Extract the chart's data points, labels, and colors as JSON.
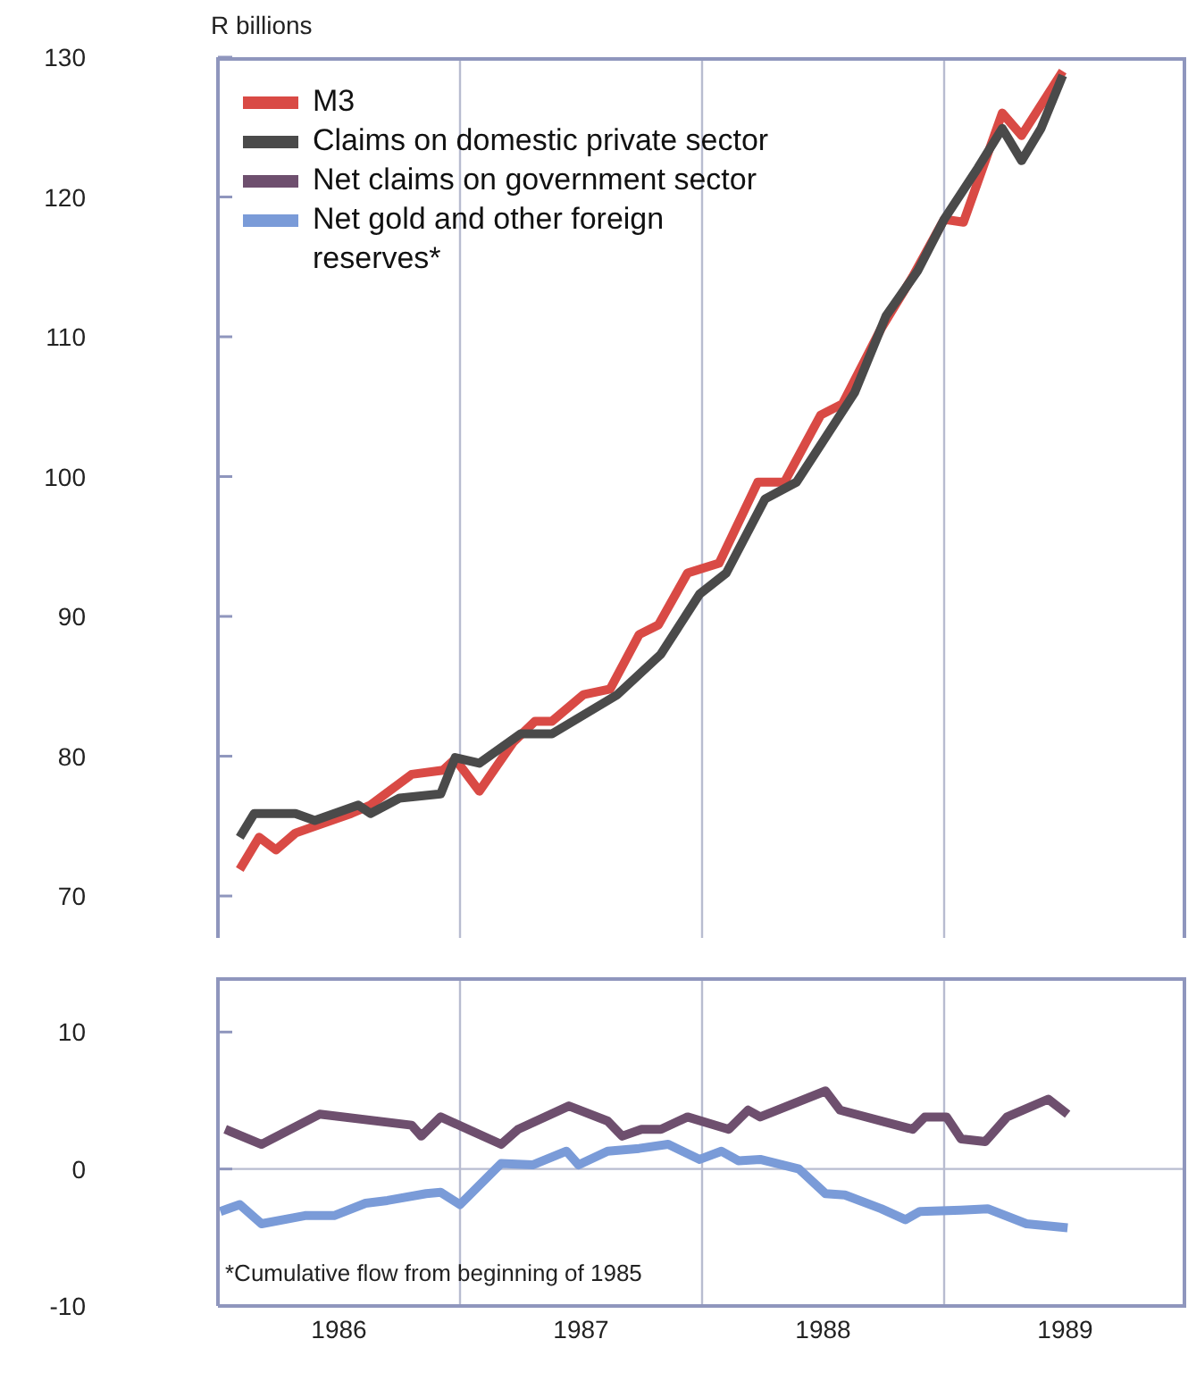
{
  "chart_data": [
    {
      "type": "line",
      "ylabel": "R billions",
      "xlim": [
        1986,
        1990
      ],
      "ylim": [
        67,
        130
      ],
      "yticks": [
        70,
        80,
        90,
        100,
        110,
        120,
        130
      ],
      "tick_labels": "y",
      "grid": false,
      "legend": "top left",
      "marker": "none",
      "line_style": "solid",
      "ref_lines": [
        {
          "axis": "x",
          "value": 1987,
          "color": "#b8bcd0"
        },
        {
          "axis": "x",
          "value": 1988,
          "color": "#b8bcd0"
        },
        {
          "axis": "x",
          "value": 1989,
          "color": "#b8bcd0"
        }
      ],
      "series": [
        {
          "name": "M3",
          "color": "#d94a45",
          "x": [
            1986.09,
            1986.17,
            1986.24,
            1986.32,
            1986.55,
            1986.63,
            1986.8,
            1986.93,
            1986.98,
            1987.08,
            1987.14,
            1987.22,
            1987.31,
            1987.38,
            1987.51,
            1987.62,
            1987.74,
            1987.82,
            1987.94,
            1988.07,
            1988.23,
            1988.34,
            1988.49,
            1988.58,
            1988.74,
            1988.87,
            1989.0,
            1989.08,
            1989.24,
            1989.32,
            1989.49
          ],
          "values": [
            71.9,
            74.2,
            73.3,
            74.5,
            75.9,
            76.5,
            78.7,
            79.0,
            79.8,
            77.5,
            79.0,
            81.0,
            82.5,
            82.5,
            84.4,
            84.8,
            88.7,
            89.4,
            93.1,
            93.8,
            99.6,
            99.6,
            104.4,
            105.2,
            110.6,
            114.3,
            118.4,
            118.2,
            126.0,
            124.4,
            129.0
          ]
        },
        {
          "name": "Claims on domestic private sector",
          "color": "#4a4a4a",
          "x": [
            1986.09,
            1986.15,
            1986.32,
            1986.4,
            1986.58,
            1986.63,
            1986.75,
            1986.92,
            1986.98,
            1987.08,
            1987.25,
            1987.38,
            1987.65,
            1987.83,
            1987.99,
            1988.1,
            1988.26,
            1988.39,
            1988.63,
            1988.76,
            1988.89,
            1989.0,
            1989.14,
            1989.24,
            1989.32,
            1989.4,
            1989.49
          ],
          "values": [
            74.2,
            75.9,
            75.9,
            75.4,
            76.5,
            75.9,
            77.0,
            77.3,
            79.9,
            79.5,
            81.6,
            81.6,
            84.4,
            87.3,
            91.6,
            93.1,
            98.4,
            99.6,
            106.0,
            111.5,
            114.7,
            118.4,
            122.1,
            124.9,
            122.6,
            124.9,
            128.7
          ]
        }
      ]
    },
    {
      "type": "line",
      "xlim": [
        1986,
        1990
      ],
      "xticks": [
        {
          "value": 1986.5,
          "label": "1986"
        },
        {
          "value": 1987.5,
          "label": "1987"
        },
        {
          "value": 1988.5,
          "label": "1988"
        },
        {
          "value": 1989.5,
          "label": "1989"
        }
      ],
      "ylim": [
        -10,
        14
      ],
      "yticks": [
        -10,
        0,
        10
      ],
      "grid": false,
      "legend": "top",
      "marker": "none",
      "line_style": "solid",
      "annotations": [
        "*Cumulative flow from beginning of 1985"
      ],
      "ref_lines": [
        {
          "axis": "x",
          "value": 1987,
          "color": "#b8bcd0"
        },
        {
          "axis": "x",
          "value": 1988,
          "color": "#b8bcd0"
        },
        {
          "axis": "x",
          "value": 1989,
          "color": "#b8bcd0"
        },
        {
          "axis": "y",
          "value": 0,
          "color": "#b8bcd0"
        }
      ],
      "series": [
        {
          "name": "Net claims on government sector",
          "color": "#6e4f6e",
          "x": [
            1986.03,
            1986.18,
            1986.42,
            1986.8,
            1986.84,
            1986.92,
            1987.17,
            1987.24,
            1987.45,
            1987.61,
            1987.67,
            1987.75,
            1987.83,
            1987.94,
            1988.11,
            1988.19,
            1988.24,
            1988.51,
            1988.57,
            1988.87,
            1988.92,
            1989.01,
            1989.07,
            1989.17,
            1989.26,
            1989.43,
            1989.51
          ],
          "values": [
            2.9,
            1.8,
            4.0,
            3.2,
            2.4,
            3.8,
            1.8,
            2.9,
            4.6,
            3.5,
            2.4,
            2.9,
            2.9,
            3.8,
            2.9,
            4.3,
            3.8,
            5.7,
            4.3,
            2.9,
            3.8,
            3.8,
            2.2,
            2.0,
            3.8,
            5.1,
            4.0
          ]
        },
        {
          "name": "Net gold and other foreign reserves*",
          "color": "#7a9bd8",
          "x": [
            1986.01,
            1986.09,
            1986.18,
            1986.36,
            1986.48,
            1986.61,
            1986.7,
            1986.86,
            1986.92,
            1987.0,
            1987.17,
            1987.3,
            1987.44,
            1987.49,
            1987.61,
            1987.74,
            1987.86,
            1987.99,
            1988.08,
            1988.15,
            1988.24,
            1988.4,
            1988.51,
            1988.59,
            1988.74,
            1988.84,
            1988.9,
            1989.07,
            1989.18,
            1989.34,
            1989.51
          ],
          "values": [
            -3.1,
            -2.6,
            -4.0,
            -3.4,
            -3.4,
            -2.5,
            -2.3,
            -1.8,
            -1.7,
            -2.6,
            0.4,
            0.3,
            1.3,
            0.3,
            1.3,
            1.5,
            1.8,
            0.7,
            1.3,
            0.6,
            0.7,
            0.0,
            -1.8,
            -1.9,
            -2.9,
            -3.7,
            -3.1,
            -3.0,
            -2.9,
            -4.0,
            -4.3
          ]
        }
      ]
    }
  ]
}
